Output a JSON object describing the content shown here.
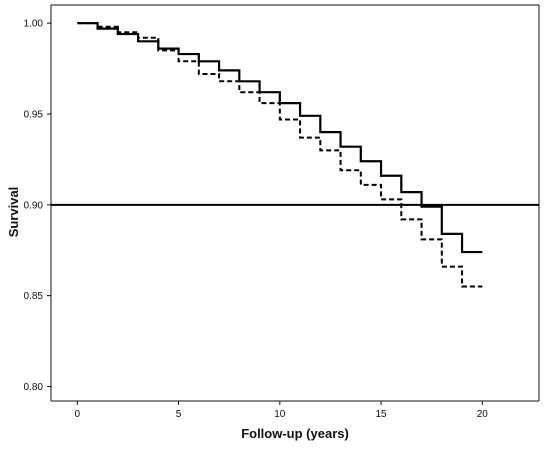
{
  "chart_data": {
    "type": "line",
    "title": "",
    "xlabel": "Follow-up (years)",
    "ylabel": "Survival",
    "xlim": [
      -1.3,
      22.8
    ],
    "ylim": [
      0.792,
      1.01
    ],
    "xticks": [
      0,
      5,
      10,
      15,
      20
    ],
    "yticks": [
      0.8,
      0.85,
      0.9,
      0.95,
      1.0
    ],
    "xtick_labels": [
      "0",
      "5",
      "10",
      "15",
      "20"
    ],
    "ytick_labels": [
      "0.80",
      "0.85",
      "0.90",
      "0.95",
      "1.00"
    ],
    "grid": false,
    "legend": "none",
    "series": [
      {
        "style": "solid",
        "color": "#000000",
        "step": true,
        "x": [
          0,
          1,
          2,
          3,
          4,
          5,
          6,
          7,
          8,
          9,
          10,
          11,
          12,
          13,
          14,
          15,
          16,
          17,
          18,
          19,
          20
        ],
        "y": [
          1.0,
          0.997,
          0.994,
          0.99,
          0.986,
          0.983,
          0.979,
          0.974,
          0.968,
          0.962,
          0.956,
          0.949,
          0.94,
          0.932,
          0.924,
          0.916,
          0.907,
          0.899,
          0.884,
          0.874,
          0.874
        ]
      },
      {
        "style": "dashed",
        "color": "#000000",
        "step": true,
        "x": [
          0,
          1,
          2,
          3,
          4,
          5,
          6,
          7,
          8,
          9,
          10,
          11,
          12,
          13,
          14,
          15,
          16,
          17,
          18,
          19,
          20
        ],
        "y": [
          1.0,
          0.998,
          0.995,
          0.992,
          0.985,
          0.979,
          0.972,
          0.968,
          0.962,
          0.956,
          0.947,
          0.937,
          0.93,
          0.919,
          0.911,
          0.903,
          0.892,
          0.881,
          0.866,
          0.855,
          0.855
        ]
      }
    ],
    "reference_lines": [
      {
        "axis": "y",
        "value": 0.9,
        "style": "solid",
        "color": "#000000"
      }
    ]
  }
}
